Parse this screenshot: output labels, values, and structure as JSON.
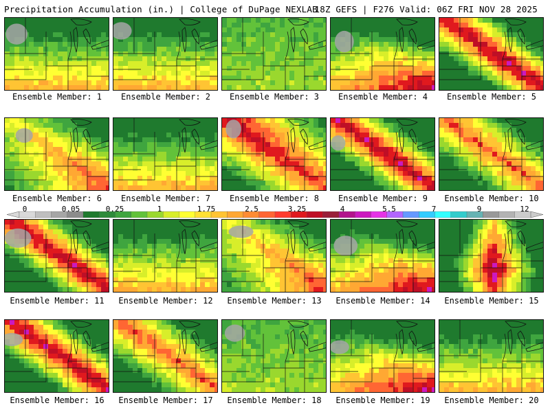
{
  "header": {
    "title_left": "Precipitation Accumulation (in.) | College of DuPage NEXLAB",
    "title_right": "18Z GEFS | F276 Valid: 06Z FRI NOV 28 2025"
  },
  "panels": [
    {
      "label": "Ensemble Member: 1",
      "pattern": "south-band"
    },
    {
      "label": "Ensemble Member: 2",
      "pattern": "south-band"
    },
    {
      "label": "Ensemble Member: 3",
      "pattern": "dry"
    },
    {
      "label": "Ensemble Member: 4",
      "pattern": "south-heavy"
    },
    {
      "label": "Ensemble Member: 5",
      "pattern": "diagonal-heavy"
    },
    {
      "label": "Ensemble Member: 6",
      "pattern": "broad-moderate"
    },
    {
      "label": "Ensemble Member: 7",
      "pattern": "south-band"
    },
    {
      "label": "Ensemble Member: 8",
      "pattern": "broad-heavy"
    },
    {
      "label": "Ensemble Member: 9",
      "pattern": "diagonal-heavy"
    },
    {
      "label": "Ensemble Member: 10",
      "pattern": "diagonal-moderate"
    },
    {
      "label": "Ensemble Member: 11",
      "pattern": "diagonal-heavy"
    },
    {
      "label": "Ensemble Member: 12",
      "pattern": "south-band"
    },
    {
      "label": "Ensemble Member: 13",
      "pattern": "broad-moderate"
    },
    {
      "label": "Ensemble Member: 14",
      "pattern": "south-heavy"
    },
    {
      "label": "Ensemble Member: 15",
      "pattern": "central-heavy"
    },
    {
      "label": "Ensemble Member: 16",
      "pattern": "diagonal-heavy"
    },
    {
      "label": "Ensemble Member: 17",
      "pattern": "diagonal-moderate"
    },
    {
      "label": "Ensemble Member: 18",
      "pattern": "dry"
    },
    {
      "label": "Ensemble Member: 19",
      "pattern": "south-heavy"
    },
    {
      "label": "Ensemble Member: 20",
      "pattern": "south-band"
    }
  ],
  "colorbar": {
    "ticks": [
      "0",
      "0.05",
      "0.25",
      "1",
      "1.75",
      "2.5",
      "3.25",
      "4",
      "5.5",
      "7",
      "9",
      "12"
    ],
    "colors": [
      "#d9d9d9",
      "#bfbfbf",
      "#a6a6a6",
      "#8c8c8c",
      "#1f7a2e",
      "#2e8b3a",
      "#3fa53f",
      "#62c23a",
      "#9ad82e",
      "#d8ee2a",
      "#ffff33",
      "#ffe033",
      "#ffc433",
      "#ffa833",
      "#ff8c33",
      "#ff6633",
      "#ff3b2e",
      "#e0191e",
      "#bf0f26",
      "#991f3a",
      "#b3148c",
      "#cc1abf",
      "#e633e6",
      "#b366ff",
      "#6699ff",
      "#33ccff",
      "#33ffff",
      "#33cccc",
      "#66b3b3",
      "#999999",
      "#b3b3b3",
      "#cccccc"
    ]
  },
  "colors": {
    "background": "#ffffff",
    "map_base": "#2e8b3a",
    "state_lines": "#111111"
  }
}
